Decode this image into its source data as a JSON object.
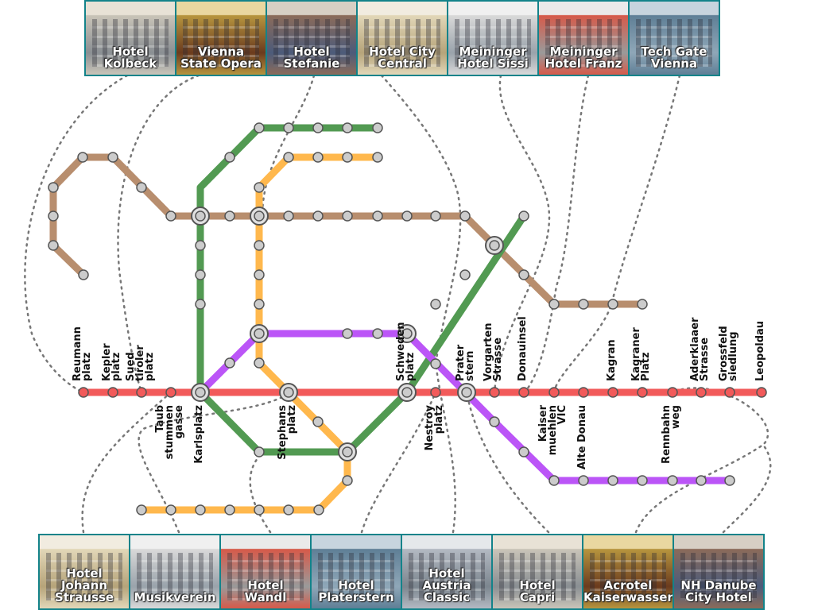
{
  "colors": {
    "red": "#f25a5a",
    "green": "#529a52",
    "orange": "#ffb84d",
    "brown": "#b88e6e",
    "purple": "#bb55f7",
    "stop_fill": "#cccccc",
    "stop_stroke": "#555555",
    "frame": "#13838a",
    "connector": "#777777"
  },
  "hotels_top": [
    {
      "label": "Hotel\nKolbeck",
      "icon": "building-photo"
    },
    {
      "label": "Vienna\nState Opera",
      "icon": "opera-interior-photo"
    },
    {
      "label": "Hotel\nStefanie",
      "icon": "building-photo"
    },
    {
      "label": "Hotel City\nCentral",
      "icon": "building-photo"
    },
    {
      "label": "Meininger\nHotel Sissi",
      "icon": "building-photo"
    },
    {
      "label": "Meininger\nHotel Franz",
      "icon": "building-photo"
    },
    {
      "label": "Tech Gate\nVienna",
      "icon": "tower-photo"
    }
  ],
  "hotels_bottom": [
    {
      "label": "Hotel\nJohann\nStrausse",
      "icon": "building-photo"
    },
    {
      "label": "Musikverein",
      "icon": "building-photo"
    },
    {
      "label": "Hotel\nWandl",
      "icon": "building-photo"
    },
    {
      "label": "Hotel\nPlaterstern",
      "icon": "building-photo"
    },
    {
      "label": "Hotel\nAustria\nClassic",
      "icon": "building-photo"
    },
    {
      "label": "Hotel\nCapri",
      "icon": "building-photo"
    },
    {
      "label": "Acrotel\nKaiserwasser",
      "icon": "building-photo"
    },
    {
      "label": "NH Danube\nCity Hotel",
      "icon": "building-photo"
    }
  ],
  "station_labels": [
    "Reumann\nplatz",
    "Kepler\nplatz",
    "Sued\ntiroler\nplatz",
    "Taub\nstummen\ngasse",
    "Karlsplatz",
    "Stephans\nplatz",
    "Schweden\nplatz",
    "Nestroy\nplatz",
    "Prater\nstern",
    "Vorgarten\nStrasse",
    "Donauinsel",
    "Kaiser\nmuehlen\nVIC",
    "Alte Donau",
    "Kagran",
    "Kagraner\nPlatz",
    "Rennbahn\nweg",
    "Aderklaaer\nStrasse",
    "Grossfeld\nsiedlung",
    "Leopoldau"
  ]
}
